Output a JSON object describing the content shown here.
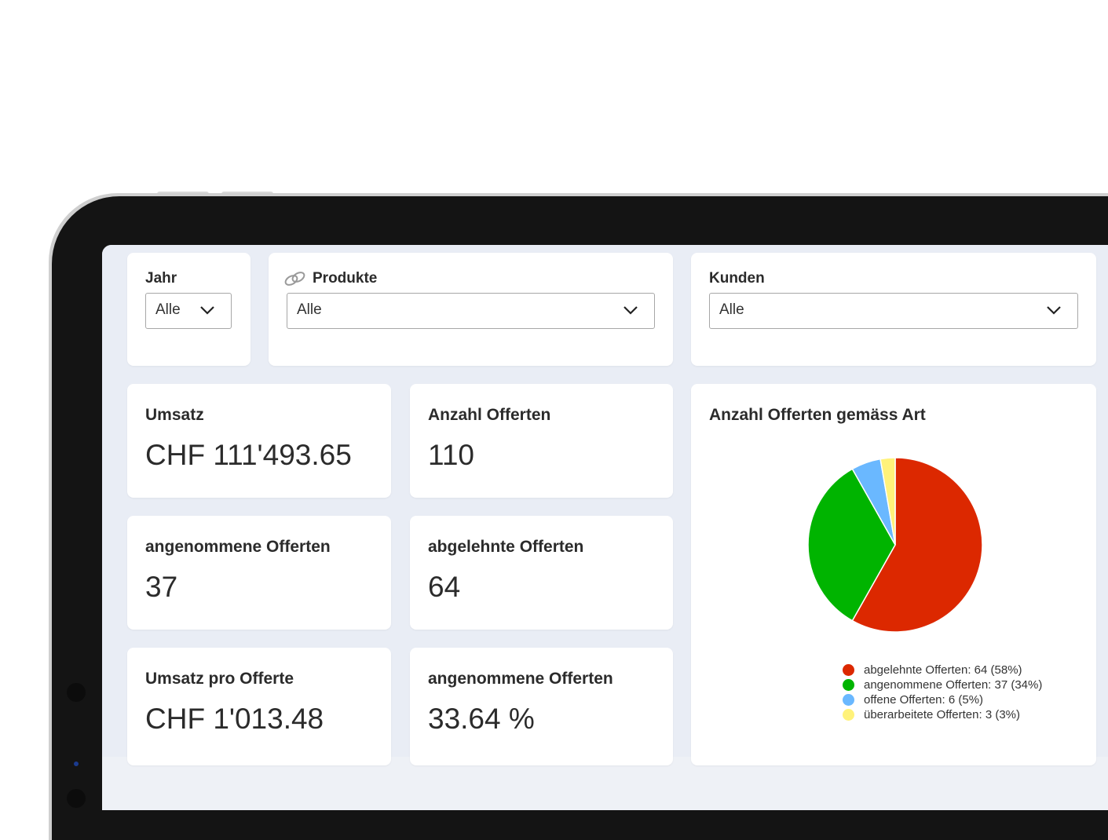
{
  "filters": {
    "year": {
      "label": "Jahr",
      "value": "Alle"
    },
    "products": {
      "label": "Produkte",
      "value": "Alle"
    },
    "customers": {
      "label": "Kunden",
      "value": "Alle"
    }
  },
  "kpis": [
    {
      "title": "Umsatz",
      "value": "CHF 111'493.65"
    },
    {
      "title": "Anzahl Offerten",
      "value": "110"
    },
    {
      "title": "angenommene Offerten",
      "value": "37"
    },
    {
      "title": "abgelehnte Offerten",
      "value": "64"
    },
    {
      "title": "Umsatz pro Offerte",
      "value": "CHF 1'013.48"
    },
    {
      "title": "angenommene Offerten",
      "value": "33.64 %"
    }
  ],
  "chart": {
    "title": "Anzahl Offerten gemäss Art",
    "legend": [
      "abgelehnte Offerten: 64 (58%)",
      "angenommene Offerten: 37 (34%)",
      "offene Offerten: 6 (5%)",
      "überarbeitete Offerten: 3 (3%)"
    ]
  },
  "chart_data": {
    "type": "pie",
    "title": "Anzahl Offerten gemäss Art",
    "categories": [
      "abgelehnte Offerten",
      "angenommene Offerten",
      "offene Offerten",
      "überarbeitete Offerten"
    ],
    "values": [
      64,
      37,
      6,
      3
    ],
    "colors": [
      "#dc2800",
      "#00b400",
      "#6ab8ff",
      "#fff27a"
    ],
    "legend_position": "bottom"
  }
}
